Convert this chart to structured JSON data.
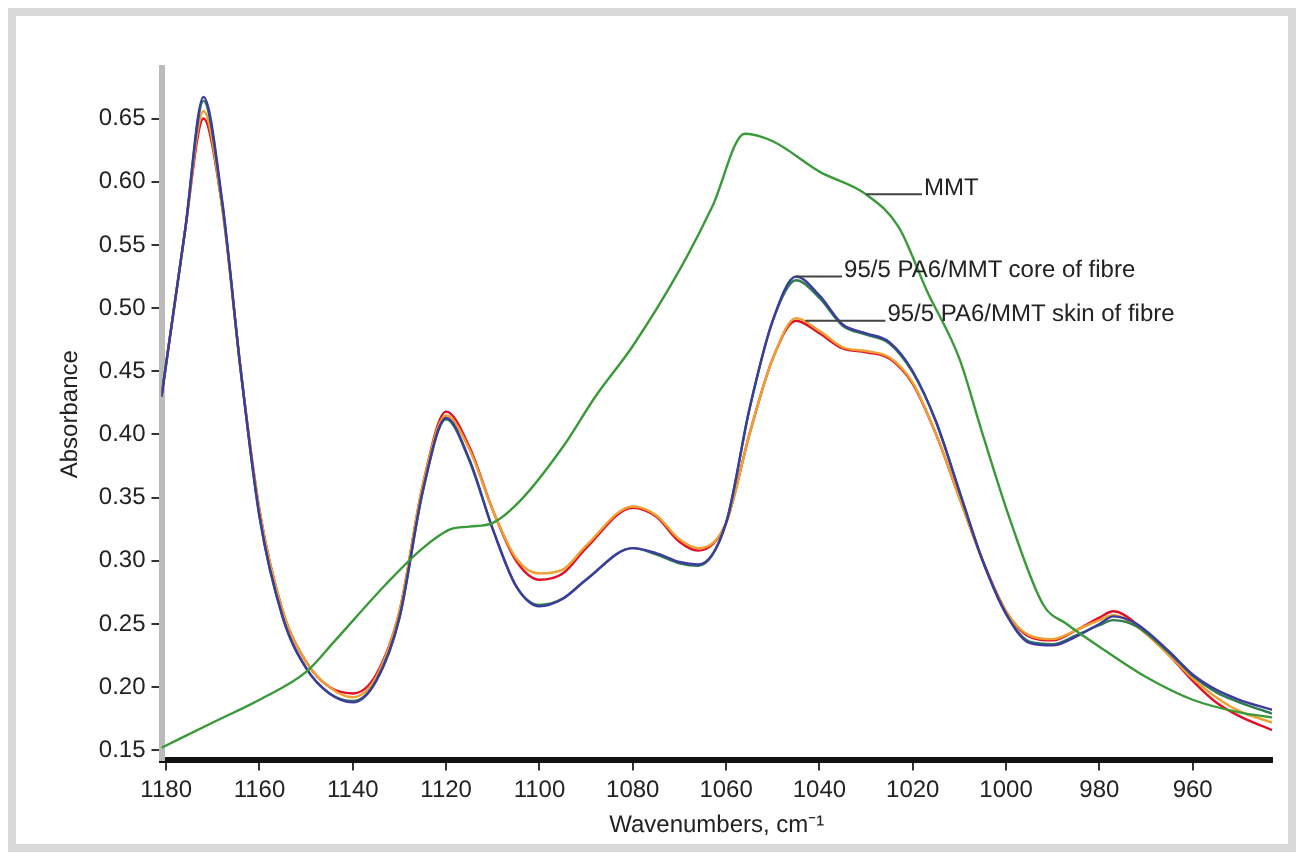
{
  "chart_data": {
    "type": "line",
    "xlabel": "Wavenumbers, cm⁻¹",
    "ylabel": "Absorbance",
    "xlim": [
      1181,
      943
    ],
    "xticks": [
      1180,
      1160,
      1140,
      1120,
      1100,
      1080,
      1060,
      1040,
      1020,
      1000,
      980,
      960
    ],
    "ylim": [
      0.142,
      0.69
    ],
    "yticks": [
      {
        "value": 0.15,
        "label": "0.15"
      },
      {
        "value": 0.2,
        "label": "0.20"
      },
      {
        "value": 0.25,
        "label": "0.25"
      },
      {
        "value": 0.3,
        "label": "0.30"
      },
      {
        "value": 0.35,
        "label": "0.35"
      },
      {
        "value": 0.4,
        "label": "0.40"
      },
      {
        "value": 0.45,
        "label": "0.45"
      },
      {
        "value": 0.5,
        "label": "0.50"
      },
      {
        "value": 0.55,
        "label": "0.55"
      },
      {
        "value": 0.6,
        "label": "0.60"
      },
      {
        "value": 0.65,
        "label": "0.65"
      }
    ],
    "grid": false,
    "legend": false,
    "marker": "none",
    "line_style": "solid",
    "x": [
      1181,
      1176,
      1172,
      1168,
      1164,
      1160,
      1155,
      1150,
      1145,
      1140,
      1135,
      1130,
      1125,
      1120,
      1115,
      1110,
      1105,
      1100,
      1095,
      1090,
      1080,
      1075,
      1070,
      1066,
      1060,
      1055,
      1050,
      1045,
      1040,
      1035,
      1030,
      1025,
      1020,
      1015,
      1010,
      1005,
      1000,
      995,
      990,
      985,
      980,
      977,
      972,
      965,
      960,
      955,
      950,
      943
    ],
    "series": [
      {
        "color": "#3a9a3a",
        "x": [
          1181,
          1170,
          1160,
          1150,
          1144,
          1133,
          1125,
          1119,
          1115,
          1110,
          1104,
          1095,
          1088,
          1080,
          1070,
          1063,
          1056,
          1050,
          1040,
          1030,
          1023,
          1017,
          1010,
          1005,
          999,
          992,
          987,
          980,
          970,
          960,
          950,
          943
        ],
        "values": [
          0.152,
          0.172,
          0.19,
          0.212,
          0.236,
          0.281,
          0.31,
          0.325,
          0.327,
          0.33,
          0.348,
          0.39,
          0.43,
          0.47,
          0.53,
          0.58,
          0.638,
          0.632,
          0.608,
          0.59,
          0.564,
          0.514,
          0.46,
          0.4,
          0.331,
          0.265,
          0.25,
          0.232,
          0.208,
          0.19,
          0.18,
          0.176
        ]
      },
      {
        "color": "#3c3c9e",
        "values": [
          0.43,
          0.56,
          0.667,
          0.585,
          0.45,
          0.335,
          0.255,
          0.215,
          0.195,
          0.188,
          0.205,
          0.255,
          0.355,
          0.413,
          0.38,
          0.325,
          0.28,
          0.264,
          0.27,
          0.285,
          0.31,
          0.306,
          0.299,
          0.297,
          0.33,
          0.42,
          0.49,
          0.525,
          0.51,
          0.487,
          0.48,
          0.473,
          0.45,
          0.41,
          0.355,
          0.3,
          0.258,
          0.235,
          0.233,
          0.24,
          0.25,
          0.256,
          0.25,
          0.228,
          0.21,
          0.198,
          0.19,
          0.182
        ]
      },
      {
        "color": "#2e7d4f",
        "values": [
          0.43,
          0.56,
          0.664,
          0.583,
          0.45,
          0.335,
          0.255,
          0.215,
          0.195,
          0.189,
          0.205,
          0.255,
          0.355,
          0.412,
          0.379,
          0.325,
          0.28,
          0.265,
          0.27,
          0.285,
          0.31,
          0.305,
          0.298,
          0.296,
          0.33,
          0.42,
          0.49,
          0.522,
          0.508,
          0.486,
          0.479,
          0.472,
          0.449,
          0.41,
          0.355,
          0.3,
          0.258,
          0.236,
          0.234,
          0.241,
          0.249,
          0.253,
          0.248,
          0.227,
          0.209,
          0.196,
          0.188,
          0.179
        ]
      },
      {
        "color": "#f0a030",
        "values": [
          0.43,
          0.56,
          0.656,
          0.58,
          0.45,
          0.34,
          0.26,
          0.22,
          0.2,
          0.192,
          0.208,
          0.26,
          0.36,
          0.415,
          0.388,
          0.34,
          0.302,
          0.29,
          0.293,
          0.312,
          0.343,
          0.336,
          0.317,
          0.31,
          0.33,
          0.4,
          0.46,
          0.492,
          0.482,
          0.469,
          0.466,
          0.461,
          0.441,
          0.4,
          0.35,
          0.3,
          0.26,
          0.241,
          0.238,
          0.245,
          0.253,
          0.257,
          0.248,
          0.225,
          0.207,
          0.192,
          0.181,
          0.172
        ]
      },
      {
        "color": "#e0102a",
        "values": [
          0.43,
          0.56,
          0.65,
          0.58,
          0.45,
          0.34,
          0.26,
          0.22,
          0.2,
          0.195,
          0.21,
          0.26,
          0.36,
          0.418,
          0.39,
          0.34,
          0.3,
          0.285,
          0.29,
          0.31,
          0.342,
          0.335,
          0.315,
          0.308,
          0.33,
          0.4,
          0.46,
          0.49,
          0.48,
          0.468,
          0.465,
          0.46,
          0.44,
          0.4,
          0.35,
          0.3,
          0.26,
          0.24,
          0.237,
          0.245,
          0.255,
          0.26,
          0.25,
          0.225,
          0.205,
          0.188,
          0.177,
          0.166
        ]
      }
    ],
    "annotations": [
      {
        "text": "MMT",
        "x": 1030,
        "y": 0.59
      },
      {
        "text": "95/5 PA6/MMT core of fibre",
        "x": 1045,
        "y": 0.525
      },
      {
        "text": "95/5 PA6/MMT skin of fibre",
        "x": 1043,
        "y": 0.49
      }
    ]
  }
}
